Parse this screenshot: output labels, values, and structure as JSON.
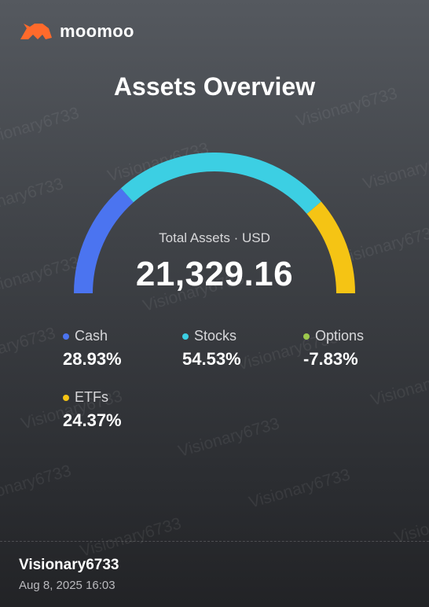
{
  "brand": {
    "name": "moomoo",
    "logo_color": "#ff6a2b"
  },
  "title": "Assets Overview",
  "total": {
    "label": "Total Assets · USD",
    "value": "21,329.16"
  },
  "chart_data": {
    "type": "gauge",
    "series": [
      {
        "name": "Cash",
        "percent": 28.93,
        "color": "#4b74f0"
      },
      {
        "name": "Stocks",
        "percent": 54.53,
        "color": "#3ccfe3"
      },
      {
        "name": "ETFs",
        "percent": 24.37,
        "color": "#f5c414"
      }
    ]
  },
  "legend": [
    {
      "label": "Cash",
      "value": "28.93%",
      "color": "#4b74f0"
    },
    {
      "label": "Stocks",
      "value": "54.53%",
      "color": "#3ccfe3"
    },
    {
      "label": "Options",
      "value": "-7.83%",
      "color": "#9cc84c"
    },
    {
      "label": "ETFs",
      "value": "24.37%",
      "color": "#f5c414"
    }
  ],
  "watermark": "Visionary6733",
  "footer": {
    "user": "Visionary6733",
    "date": "Aug 8, 2025 16:03"
  }
}
